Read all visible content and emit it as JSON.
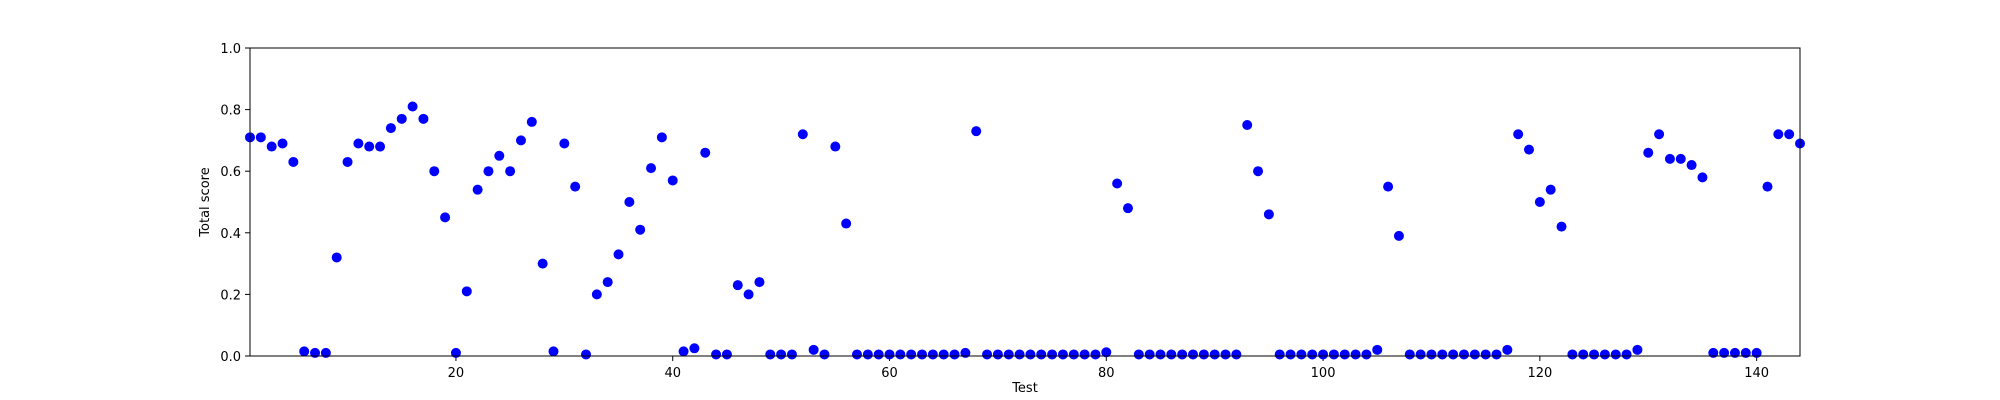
{
  "chart_data": {
    "type": "scatter",
    "xlabel": "Test",
    "ylabel": "Total score",
    "x": [
      1,
      2,
      3,
      4,
      5,
      6,
      7,
      8,
      9,
      10,
      11,
      12,
      13,
      14,
      15,
      16,
      17,
      18,
      19,
      20,
      21,
      22,
      23,
      24,
      25,
      26,
      27,
      28,
      29,
      30,
      31,
      32,
      33,
      34,
      35,
      36,
      37,
      38,
      39,
      40,
      41,
      42,
      43,
      44,
      45,
      46,
      47,
      48,
      49,
      50,
      51,
      52,
      53,
      54,
      55,
      56,
      57,
      58,
      59,
      60,
      61,
      62,
      63,
      64,
      65,
      66,
      67,
      68,
      69,
      70,
      71,
      72,
      73,
      74,
      75,
      76,
      77,
      78,
      79,
      80,
      81,
      82,
      83,
      84,
      85,
      86,
      87,
      88,
      89,
      90,
      91,
      92,
      93,
      94,
      95,
      96,
      97,
      98,
      99,
      100,
      101,
      102,
      103,
      104,
      105,
      106,
      107,
      108,
      109,
      110,
      111,
      112,
      113,
      114,
      115,
      116,
      117,
      118,
      119,
      120,
      121,
      122,
      123,
      124,
      125,
      126,
      127,
      128,
      129,
      130,
      131,
      132,
      133,
      134,
      135,
      136,
      137,
      138,
      139,
      140,
      141,
      142,
      143,
      144
    ],
    "series": [
      {
        "color": "#0000ff",
        "values": [
          0.71,
          0.71,
          0.68,
          0.69,
          0.63,
          0.015,
          0.01,
          0.01,
          0.32,
          0.63,
          0.69,
          0.68,
          0.68,
          0.74,
          0.77,
          0.81,
          0.77,
          0.6,
          0.45,
          0.01,
          0.21,
          0.54,
          0.6,
          0.65,
          0.6,
          0.7,
          0.76,
          0.3,
          0.015,
          0.69,
          0.55,
          0.005,
          0.2,
          0.24,
          0.33,
          0.5,
          0.41,
          0.61,
          0.71,
          0.57,
          0.015,
          0.025,
          0.66,
          0.005,
          0.005,
          0.23,
          0.2,
          0.24,
          0.005,
          0.005,
          0.005,
          0.72,
          0.02,
          0.005,
          0.68,
          0.43,
          0.005,
          0.005,
          0.005,
          0.005,
          0.005,
          0.005,
          0.005,
          0.005,
          0.005,
          0.005,
          0.01,
          0.73,
          0.005,
          0.005,
          0.005,
          0.005,
          0.005,
          0.005,
          0.005,
          0.005,
          0.005,
          0.005,
          0.005,
          0.012,
          0.56,
          0.48,
          0.005,
          0.005,
          0.005,
          0.005,
          0.005,
          0.005,
          0.005,
          0.005,
          0.005,
          0.005,
          0.75,
          0.6,
          0.46,
          0.005,
          0.005,
          0.005,
          0.005,
          0.005,
          0.005,
          0.005,
          0.005,
          0.005,
          0.02,
          0.55,
          0.39,
          0.005,
          0.005,
          0.005,
          0.005,
          0.005,
          0.005,
          0.005,
          0.005,
          0.005,
          0.02,
          0.72,
          0.67,
          0.5,
          0.54,
          0.42,
          0.005,
          0.005,
          0.005,
          0.005,
          0.005,
          0.005,
          0.02,
          0.66,
          0.72,
          0.64,
          0.64,
          0.62,
          0.58,
          0.01,
          0.01,
          0.01,
          0.01,
          0.01,
          0.55,
          0.72,
          0.72,
          0.69
        ]
      }
    ],
    "xlim": [
      1,
      144
    ],
    "ylim": [
      0,
      1
    ],
    "xticks": [
      20,
      40,
      60,
      80,
      100,
      120,
      140
    ],
    "yticks": [
      {
        "value": 0,
        "label": "0.0"
      },
      0.2,
      0.4,
      0.6,
      0.8,
      {
        "value": 1,
        "label": "1.0"
      }
    ]
  }
}
